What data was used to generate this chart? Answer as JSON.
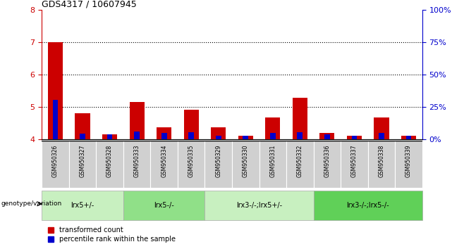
{
  "title": "GDS4317 / 10607945",
  "samples": [
    "GSM950326",
    "GSM950327",
    "GSM950328",
    "GSM950333",
    "GSM950334",
    "GSM950335",
    "GSM950329",
    "GSM950330",
    "GSM950331",
    "GSM950332",
    "GSM950336",
    "GSM950337",
    "GSM950338",
    "GSM950339"
  ],
  "red_values": [
    7.0,
    4.82,
    4.15,
    5.15,
    4.38,
    4.92,
    4.38,
    4.12,
    4.68,
    5.28,
    4.2,
    4.12,
    4.68,
    4.12
  ],
  "blue_values": [
    5.22,
    4.18,
    4.15,
    4.25,
    4.19,
    4.22,
    4.12,
    4.12,
    4.2,
    4.22,
    4.15,
    4.12,
    4.2,
    4.12
  ],
  "ymin": 4.0,
  "ymax": 8.0,
  "yticks": [
    4,
    5,
    6,
    7,
    8
  ],
  "right_yticks": [
    0,
    25,
    50,
    75,
    100
  ],
  "right_ytick_labels": [
    "0%",
    "25%",
    "50%",
    "75%",
    "100%"
  ],
  "groups": [
    {
      "label": "lrx5+/-",
      "start": 0,
      "end": 3,
      "color": "#c8f0c0"
    },
    {
      "label": "lrx5-/-",
      "start": 3,
      "end": 6,
      "color": "#90e088"
    },
    {
      "label": "lrx3-/-;lrx5+/-",
      "start": 6,
      "end": 10,
      "color": "#c8f0c0"
    },
    {
      "label": "lrx3-/-;lrx5-/-",
      "start": 10,
      "end": 14,
      "color": "#60d058"
    }
  ],
  "red_color": "#cc0000",
  "blue_color": "#0000cc",
  "red_bar_width": 0.55,
  "blue_bar_width": 0.2,
  "left_tick_color": "#cc0000",
  "right_tick_color": "#0000cc",
  "legend_red_label": "transformed count",
  "legend_blue_label": "percentile rank within the sample",
  "xlabel_text": "genotype/variation",
  "cell_bg": "#d0d0d0"
}
